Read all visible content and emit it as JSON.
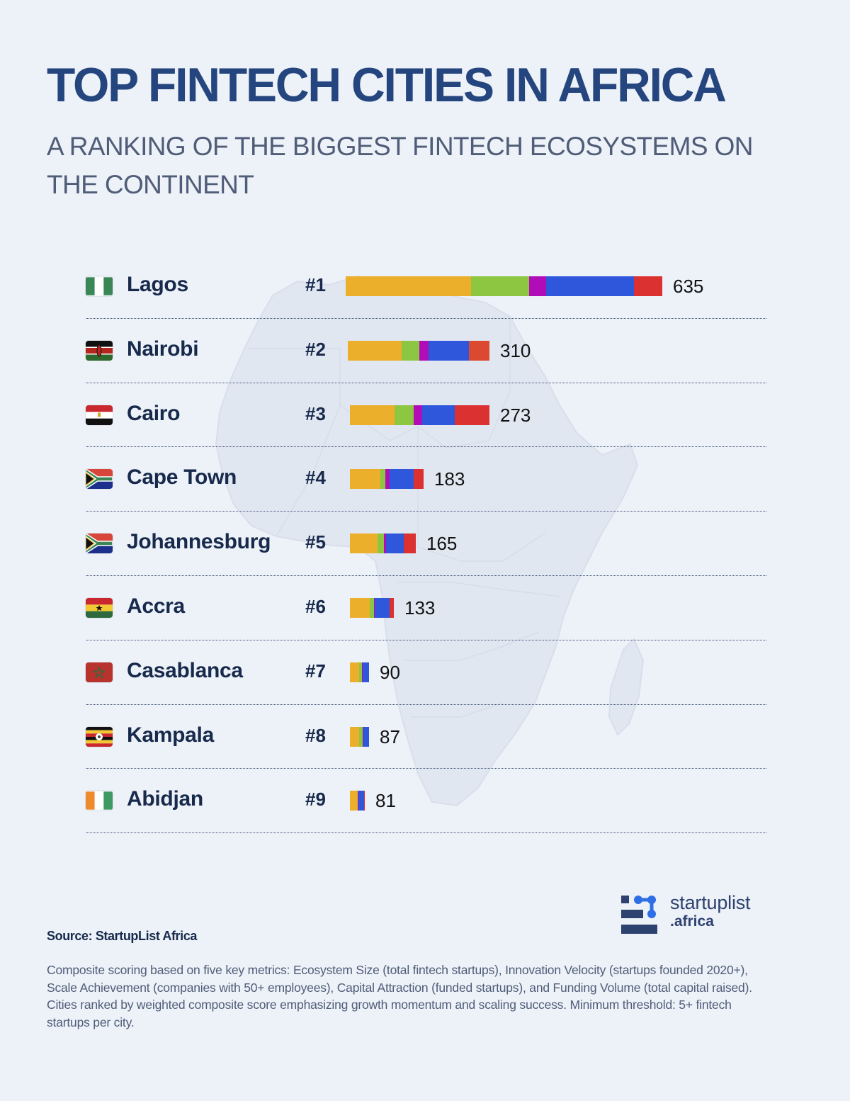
{
  "header": {
    "title": "TOP FINTECH CITIES IN AFRICA",
    "subtitle": "A RANKING OF THE BIGGEST FINTECH ECOSYSTEMS ON THE CONTINENT"
  },
  "segment_colors": {
    "ecosystem_size": "#EBAF2B",
    "innovation_velocity": "#8DC640",
    "scale_achievement": "#B00DB8",
    "capital_attraction": "#2F57DB",
    "funding_volume": "#DB3131"
  },
  "rows": [
    {
      "flag": "nigeria-flag",
      "city": "Lagos",
      "rank": "#1",
      "score": "635",
      "bar_start": 367,
      "segments": [
        177,
        82,
        24,
        124,
        40
      ]
    },
    {
      "flag": "kenya-flag",
      "city": "Nairobi",
      "rank": "#2",
      "score": "310",
      "bar_start": 370,
      "segments": [
        76,
        25,
        13,
        57,
        29
      ]
    },
    {
      "flag": "egypt-flag",
      "city": "Cairo",
      "rank": "#3",
      "score": "273",
      "bar_start": 373,
      "segments": [
        63,
        27,
        12,
        46,
        49
      ]
    },
    {
      "flag": "south-africa-flag",
      "city": "Cape Town",
      "rank": "#4",
      "score": "183",
      "bar_start": 373,
      "segments": [
        43,
        7,
        6,
        34,
        14
      ]
    },
    {
      "flag": "south-africa-flag",
      "city": "Johannesburg",
      "rank": "#5",
      "score": "165",
      "bar_start": 373,
      "segments": [
        39,
        9,
        3,
        25,
        17
      ]
    },
    {
      "flag": "ghana-flag",
      "city": "Accra",
      "rank": "#6",
      "score": "133",
      "bar_start": 373,
      "segments": [
        28,
        6,
        1,
        21,
        6
      ]
    },
    {
      "flag": "morocco-flag",
      "city": "Casablanca",
      "rank": "#7",
      "score": "90",
      "bar_start": 373,
      "segments": [
        13,
        4,
        1,
        9,
        0
      ]
    },
    {
      "flag": "uganda-flag",
      "city": "Kampala",
      "rank": "#8",
      "score": "87",
      "bar_start": 373,
      "segments": [
        13,
        5,
        1,
        8,
        0
      ]
    },
    {
      "flag": "ivory-coast-flag",
      "city": "Abidjan",
      "rank": "#9",
      "score": "81",
      "bar_start": 373,
      "segments": [
        11,
        0,
        1,
        8,
        1
      ]
    }
  ],
  "footer": {
    "source": "Source: StartupList Africa",
    "note": "Composite scoring based on five key metrics: Ecosystem Size (total fintech startups), Innovation Velocity (startups founded 2020+), Scale Achievement (companies with 50+ employees), Capital Attraction (funded startups), and Funding Volume (total capital raised). Cities ranked by weighted composite score emphasizing growth momentum and scaling success. Minimum threshold: 5+ fintech startups per city.",
    "logo_word": "startuplist",
    "logo_sub": ".africa"
  },
  "chart_data": {
    "type": "bar",
    "orientation": "horizontal",
    "stacked": true,
    "title": "TOP FINTECH CITIES IN AFRICA",
    "subtitle": "A RANKING OF THE BIGGEST FINTECH ECOSYSTEMS ON THE CONTINENT",
    "categories": [
      "Lagos",
      "Nairobi",
      "Cairo",
      "Cape Town",
      "Johannesburg",
      "Accra",
      "Casablanca",
      "Kampala",
      "Abidjan"
    ],
    "ranks": [
      "#1",
      "#2",
      "#3",
      "#4",
      "#5",
      "#6",
      "#7",
      "#8",
      "#9"
    ],
    "values": [
      635,
      310,
      273,
      183,
      165,
      133,
      90,
      87,
      81
    ],
    "series_estimated_from_pixels": [
      {
        "name": "Ecosystem Size (total fintech startups)",
        "color": "#EBAF2B",
        "values": [
          251,
          118,
          88,
          79,
          69,
          60,
          43,
          42,
          42
        ]
      },
      {
        "name": "Innovation Velocity (startups founded 2020+)",
        "color": "#8DC640",
        "values": [
          116,
          39,
          38,
          13,
          16,
          13,
          14,
          16,
          0
        ]
      },
      {
        "name": "Scale Achievement (companies with 50+ employees)",
        "color": "#B00DB8",
        "values": [
          34,
          20,
          17,
          11,
          5,
          2,
          3,
          3,
          4
        ]
      },
      {
        "name": "Capital Attraction (funded startups)",
        "color": "#2F57DB",
        "values": [
          177,
          88,
          64,
          60,
          44,
          45,
          30,
          26,
          31
        ]
      },
      {
        "name": "Funding Volume (total capital raised)",
        "color": "#DB3131",
        "values": [
          57,
          45,
          66,
          20,
          31,
          13,
          0,
          0,
          4
        ]
      }
    ],
    "xlabel": "",
    "ylabel": "",
    "grid": false,
    "legend": "none",
    "source": "Source: StartupList Africa"
  }
}
